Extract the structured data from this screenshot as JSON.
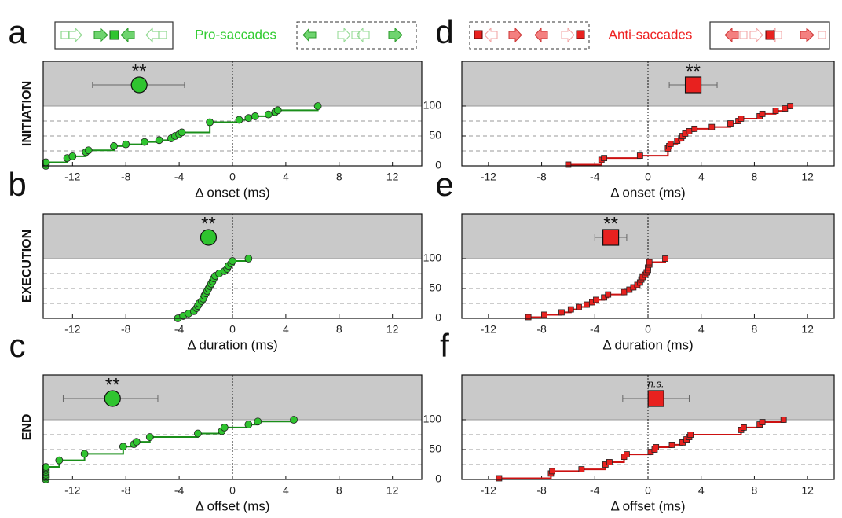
{
  "header": {
    "pro_label": "Pro-saccades",
    "anti_label": "Anti-saccades"
  },
  "chart_data": [
    {
      "type": "step",
      "panel": "a",
      "row_label": "INITIATION",
      "x_label": "Δ onset (ms)",
      "color": "#2fc42f",
      "line_color": "#1a8f1a",
      "marker": "circle",
      "x": [
        -14,
        -14,
        -14,
        -12.4,
        -12,
        -11,
        -10.8,
        -8.9,
        -8,
        -6.6,
        -5.5,
        -4.6,
        -4.3,
        -4,
        -3.8,
        -1.7,
        0.5,
        1.2,
        1.7,
        2.7,
        3.2,
        3.4,
        6.4
      ],
      "values": [
        0,
        3,
        6,
        13,
        16,
        23,
        26,
        33,
        36,
        40,
        43,
        46,
        50,
        53,
        56,
        73,
        77,
        80,
        83,
        86,
        90,
        93,
        100
      ],
      "xlim": [
        -14.2,
        14.2
      ],
      "xticks": [
        -12,
        -8,
        -4,
        0,
        4,
        8,
        12
      ],
      "ylim": [
        0,
        175
      ],
      "gridlines": [
        25,
        50,
        75
      ],
      "shade_above": 100,
      "summary": {
        "x": -7,
        "err_low": -10.5,
        "err_high": -3.6,
        "label": "**"
      }
    },
    {
      "type": "step",
      "panel": "b",
      "row_label": "EXECUTION",
      "x_label": "Δ duration (ms)",
      "color": "#2fc42f",
      "line_color": "#1a8f1a",
      "marker": "circle",
      "x": [
        -4.1,
        -3.7,
        -3.3,
        -2.9,
        -2.7,
        -2.6,
        -2.5,
        -2.3,
        -2.2,
        -2.1,
        -2.0,
        -1.9,
        -1.8,
        -1.7,
        -1.6,
        -1.5,
        -1.4,
        -1.3,
        -1.0,
        -0.6,
        -0.4,
        -0.3,
        -0.1,
        0,
        1.2
      ],
      "values": [
        0,
        4,
        8,
        12,
        17,
        21,
        25,
        29,
        33,
        38,
        42,
        46,
        50,
        54,
        58,
        62,
        67,
        71,
        75,
        79,
        83,
        88,
        92,
        96,
        100
      ],
      "xlim": [
        -14.2,
        14.2
      ],
      "xticks": [
        -12,
        -8,
        -4,
        0,
        4,
        8,
        12
      ],
      "ylim": [
        0,
        175
      ],
      "gridlines": [
        25,
        50,
        75
      ],
      "shade_above": 100,
      "summary": {
        "x": -1.8,
        "err_low": -2.2,
        "err_high": -1.4,
        "label": "**"
      }
    },
    {
      "type": "step",
      "panel": "c",
      "row_label": "END",
      "x_label": "Δ offset (ms)",
      "color": "#2fc42f",
      "line_color": "#1a8f1a",
      "marker": "circle",
      "x": [
        -14,
        -14,
        -14,
        -14,
        -14,
        -14,
        -14,
        -14,
        -14,
        -13,
        -11.1,
        -8.2,
        -7.4,
        -7.2,
        -6.2,
        -2.6,
        -0.8,
        -0.6,
        1.2,
        1.9,
        4.6
      ],
      "values": [
        0,
        3,
        5,
        8,
        11,
        13,
        16,
        19,
        21,
        32,
        43,
        55,
        59,
        63,
        71,
        77,
        81,
        87,
        92,
        97,
        100
      ],
      "xlim": [
        -14.2,
        14.2
      ],
      "xticks": [
        -12,
        -8,
        -4,
        0,
        4,
        8,
        12
      ],
      "ylim": [
        0,
        175
      ],
      "gridlines": [
        25,
        50,
        75
      ],
      "shade_above": 100,
      "summary": {
        "x": -9,
        "err_low": -12.7,
        "err_high": -5.6,
        "label": "**"
      }
    },
    {
      "type": "step",
      "panel": "d",
      "x_label": "Δ onset (ms)",
      "color": "#e8211f",
      "line_color": "#cc1111",
      "marker": "square",
      "x": [
        -6,
        -3.5,
        -3.3,
        -0.6,
        1.5,
        1.6,
        1.7,
        2.2,
        2.5,
        2.6,
        2.8,
        3.1,
        3.5,
        4.8,
        6.2,
        6.8,
        7.0,
        8.4,
        8.6,
        9.6,
        10.3,
        10.7
      ],
      "values": [
        2,
        10,
        13,
        17,
        29,
        33,
        37,
        42,
        46,
        50,
        54,
        58,
        62,
        65,
        71,
        75,
        79,
        83,
        87,
        92,
        96,
        100
      ],
      "xlim": [
        -14,
        14
      ],
      "xticks": [
        -12,
        -8,
        -4,
        0,
        4,
        8,
        12
      ],
      "ylim": [
        0,
        175
      ],
      "yticks": [
        0,
        50,
        100
      ],
      "gridlines": [
        25,
        50,
        75
      ],
      "shade_above": 100,
      "summary": {
        "x": 3.4,
        "err_low": 1.6,
        "err_high": 5.2,
        "label": "**"
      }
    },
    {
      "type": "step",
      "panel": "e",
      "x_label": "Δ duration (ms)",
      "color": "#e8211f",
      "line_color": "#cc1111",
      "marker": "square",
      "x": [
        -9,
        -7.8,
        -6.5,
        -5.8,
        -5.2,
        -4.6,
        -4.2,
        -3.9,
        -3.3,
        -3,
        -1.8,
        -1.4,
        -1.1,
        -0.8,
        -0.6,
        -0.5,
        -0.4,
        -0.2,
        -0.1,
        0,
        0,
        0.1,
        0.1,
        1.3
      ],
      "values": [
        2,
        6,
        10,
        15,
        19,
        23,
        27,
        31,
        35,
        40,
        44,
        48,
        52,
        56,
        60,
        65,
        69,
        73,
        77,
        81,
        85,
        90,
        94,
        100
      ],
      "xlim": [
        -14,
        14
      ],
      "xticks": [
        -12,
        -8,
        -4,
        0,
        4,
        8,
        12
      ],
      "ylim": [
        0,
        175
      ],
      "yticks": [
        0,
        50,
        100
      ],
      "gridlines": [
        25,
        50,
        75
      ],
      "shade_above": 100,
      "summary": {
        "x": -2.8,
        "err_low": -4,
        "err_high": -1.6,
        "label": "**"
      }
    },
    {
      "type": "step",
      "panel": "f",
      "x_label": "Δ offset (ms)",
      "color": "#e8211f",
      "line_color": "#cc1111",
      "marker": "square",
      "x": [
        -11.2,
        -7.3,
        -7.2,
        -5,
        -3.2,
        -2.9,
        -1.8,
        -1.6,
        0.2,
        0.5,
        0.6,
        1.8,
        2.6,
        2.9,
        3.1,
        3.2,
        7.0,
        7.2,
        8.4,
        8.6,
        10.2
      ],
      "values": [
        2,
        10,
        14,
        17,
        25,
        29,
        38,
        42,
        46,
        50,
        54,
        58,
        62,
        67,
        71,
        75,
        83,
        87,
        92,
        96,
        100
      ],
      "xlim": [
        -14,
        14
      ],
      "xticks": [
        -12,
        -8,
        -4,
        0,
        4,
        8,
        12
      ],
      "ylim": [
        0,
        175
      ],
      "yticks": [
        0,
        50,
        100
      ],
      "gridlines": [
        25,
        50,
        75
      ],
      "shade_above": 100,
      "summary": {
        "x": 0.6,
        "err_low": -1.9,
        "err_high": 3.1,
        "label": "n.s."
      }
    }
  ]
}
